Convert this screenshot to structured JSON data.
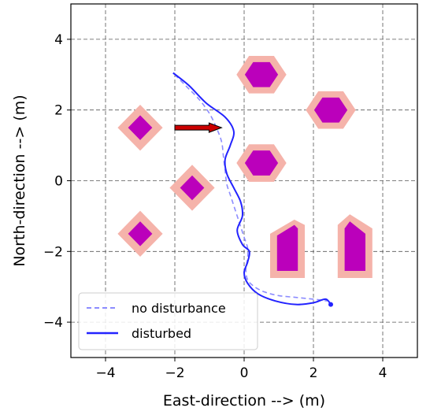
{
  "chart_data": {
    "type": "line",
    "xlabel": "East-direction --> (m)",
    "ylabel": "North-direction --> (m)",
    "xlim": [
      -5,
      5
    ],
    "ylim": [
      -5,
      5
    ],
    "xticks": [
      -4,
      -2,
      0,
      2,
      4
    ],
    "yticks": [
      -4,
      -2,
      0,
      2,
      4
    ],
    "xtick_labels": [
      "−4",
      "−2",
      "0",
      "2",
      "4"
    ],
    "ytick_labels": [
      "−4",
      "−2",
      "0",
      "2",
      "4"
    ],
    "grid": true,
    "legend_position": "lower-left",
    "colors": {
      "obstacle_outer": "#f5b3aa",
      "obstacle_inner": "#bb00bb",
      "no_disturbance": "#8c8cff",
      "disturbed": "#2323ff",
      "arrow": "#cc0000"
    },
    "series": [
      {
        "name": "no disturbance",
        "style": "dashed",
        "x": [
          -2.0,
          -1.7,
          -1.3,
          -1.0,
          -0.8,
          -0.65,
          -0.6,
          -0.55,
          -0.5,
          -0.4,
          -0.3,
          -0.2,
          -0.1,
          0.0,
          0.1,
          0.1,
          0.05,
          0.1,
          0.3,
          0.6,
          1.0,
          1.5,
          2.0,
          2.4
        ],
        "y": [
          3.0,
          2.7,
          2.3,
          1.9,
          1.5,
          1.1,
          0.7,
          0.3,
          -0.1,
          -0.4,
          -0.7,
          -1.0,
          -1.3,
          -1.6,
          -1.9,
          -2.2,
          -2.5,
          -2.8,
          -3.0,
          -3.15,
          -3.25,
          -3.3,
          -3.35,
          -3.4
        ]
      },
      {
        "name": "disturbed",
        "style": "solid",
        "x": [
          -2.05,
          -1.6,
          -1.1,
          -0.55,
          -0.3,
          -0.4,
          -0.55,
          -0.5,
          -0.3,
          -0.1,
          -0.05,
          -0.2,
          -0.05,
          0.15,
          0.1,
          0.0,
          0.1,
          0.4,
          0.9,
          1.5,
          2.0,
          2.35,
          2.5
        ],
        "y": [
          3.05,
          2.7,
          2.2,
          1.8,
          1.4,
          1.0,
          0.6,
          0.2,
          -0.2,
          -0.6,
          -1.0,
          -1.4,
          -1.8,
          -2.0,
          -2.3,
          -2.6,
          -2.9,
          -3.2,
          -3.4,
          -3.5,
          -3.45,
          -3.35,
          -3.5
        ]
      }
    ],
    "obstacles": [
      {
        "shape": "diamond",
        "center": [
          -3.0,
          1.5
        ],
        "outer": 0.65,
        "inner": 0.35
      },
      {
        "shape": "diamond",
        "center": [
          -1.5,
          -0.2
        ],
        "outer": 0.65,
        "inner": 0.35
      },
      {
        "shape": "diamond",
        "center": [
          -3.0,
          -1.5
        ],
        "outer": 0.65,
        "inner": 0.35
      },
      {
        "shape": "hexagon",
        "center": [
          0.5,
          3.0
        ],
        "outer": 0.72,
        "inner": 0.48
      },
      {
        "shape": "hexagon",
        "center": [
          2.5,
          2.0
        ],
        "outer": 0.72,
        "inner": 0.48
      },
      {
        "shape": "hexagon",
        "center": [
          0.5,
          0.5
        ],
        "outer": 0.72,
        "inner": 0.48
      },
      {
        "shape": "polygon",
        "outer_points": [
          [
            0.75,
            -1.5
          ],
          [
            1.45,
            -1.1
          ],
          [
            1.75,
            -1.25
          ],
          [
            1.75,
            -2.75
          ],
          [
            0.75,
            -2.75
          ]
        ],
        "inner_points": [
          [
            0.95,
            -1.55
          ],
          [
            1.45,
            -1.25
          ],
          [
            1.55,
            -1.35
          ],
          [
            1.55,
            -2.55
          ],
          [
            0.95,
            -2.55
          ]
        ]
      },
      {
        "shape": "polygon",
        "outer_points": [
          [
            2.7,
            -1.25
          ],
          [
            3.05,
            -0.95
          ],
          [
            3.7,
            -1.35
          ],
          [
            3.7,
            -2.75
          ],
          [
            2.7,
            -2.75
          ]
        ],
        "inner_points": [
          [
            2.9,
            -1.35
          ],
          [
            3.05,
            -1.15
          ],
          [
            3.5,
            -1.5
          ],
          [
            3.5,
            -2.55
          ],
          [
            2.9,
            -2.55
          ]
        ]
      }
    ],
    "annotations": [
      {
        "type": "arrow",
        "from": [
          -2.0,
          1.5
        ],
        "to": [
          -0.65,
          1.5
        ]
      }
    ],
    "endpoint_marker": [
      2.5,
      -3.5
    ]
  }
}
